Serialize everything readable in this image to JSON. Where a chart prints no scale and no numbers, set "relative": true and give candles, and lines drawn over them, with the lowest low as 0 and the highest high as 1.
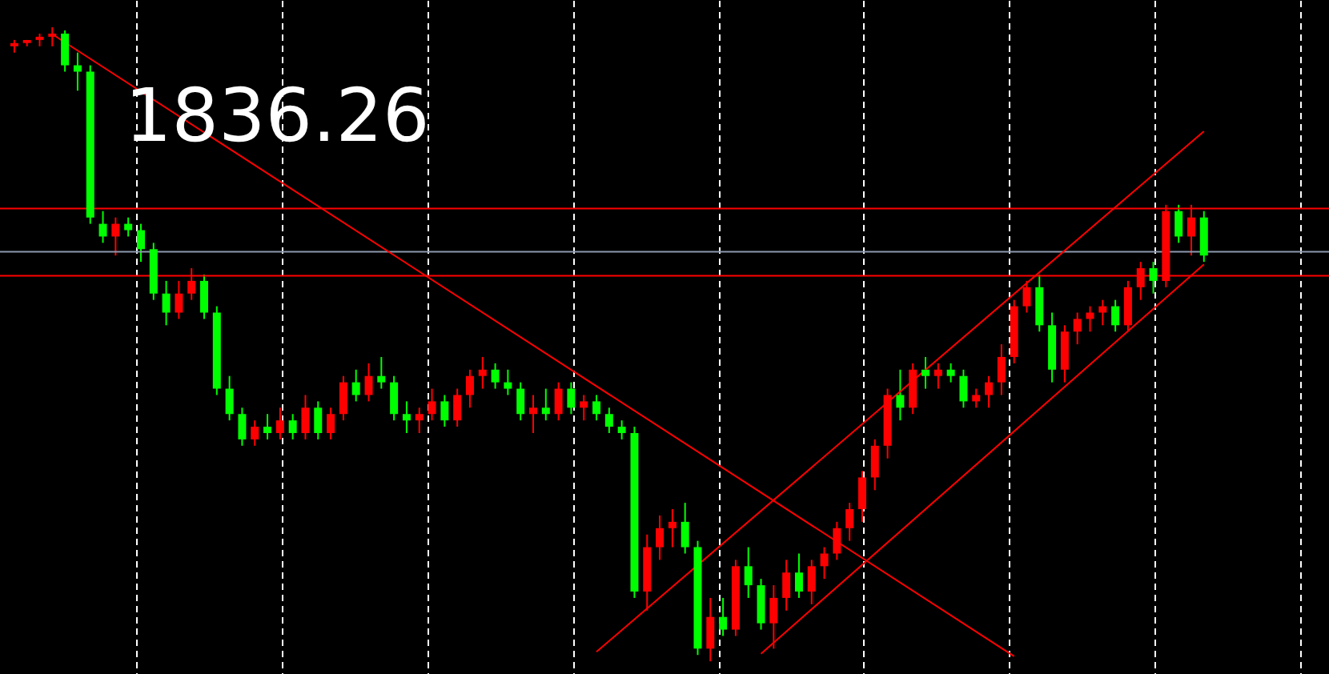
{
  "chart_data": {
    "type": "candlestick",
    "relative": true,
    "annotations": [
      "1836.26"
    ],
    "categories": [
      null,
      null,
      null,
      null,
      null,
      null,
      null,
      null,
      null,
      null,
      null,
      null,
      null,
      null,
      null,
      null,
      null,
      null,
      null,
      null,
      null,
      null,
      null,
      null,
      null,
      null,
      null,
      null,
      null,
      null,
      null,
      null,
      null,
      null,
      null,
      null,
      null,
      null,
      null,
      null,
      null,
      null,
      null,
      null,
      null,
      null,
      null,
      null,
      null,
      null,
      null,
      null,
      null,
      null,
      null,
      null,
      null,
      null,
      null,
      null,
      null,
      null,
      null,
      null,
      null,
      null,
      null,
      null,
      null,
      null,
      null,
      null,
      null,
      null,
      null,
      null,
      null,
      null,
      null,
      null,
      null,
      null,
      null,
      null,
      null,
      null,
      null,
      null,
      null,
      null,
      null,
      null,
      null,
      null,
      null
    ],
    "ohlc": [
      [
        0.97,
        0.98,
        0.96,
        0.975
      ],
      [
        0.975,
        0.98,
        0.97,
        0.98
      ],
      [
        0.98,
        0.99,
        0.97,
        0.985
      ],
      [
        0.985,
        1.0,
        0.97,
        0.99
      ],
      [
        0.99,
        0.995,
        0.93,
        0.94
      ],
      [
        0.94,
        0.96,
        0.9,
        0.93
      ],
      [
        0.93,
        0.94,
        0.69,
        0.7
      ],
      [
        0.69,
        0.71,
        0.66,
        0.67
      ],
      [
        0.67,
        0.7,
        0.64,
        0.69
      ],
      [
        0.69,
        0.7,
        0.67,
        0.68
      ],
      [
        0.68,
        0.69,
        0.63,
        0.65
      ],
      [
        0.65,
        0.66,
        0.57,
        0.58
      ],
      [
        0.58,
        0.6,
        0.53,
        0.55
      ],
      [
        0.55,
        0.6,
        0.54,
        0.58
      ],
      [
        0.58,
        0.62,
        0.57,
        0.6
      ],
      [
        0.6,
        0.61,
        0.54,
        0.55
      ],
      [
        0.55,
        0.56,
        0.42,
        0.43
      ],
      [
        0.43,
        0.45,
        0.38,
        0.39
      ],
      [
        0.39,
        0.4,
        0.34,
        0.35
      ],
      [
        0.35,
        0.38,
        0.34,
        0.37
      ],
      [
        0.37,
        0.39,
        0.35,
        0.36
      ],
      [
        0.36,
        0.4,
        0.35,
        0.38
      ],
      [
        0.38,
        0.39,
        0.35,
        0.36
      ],
      [
        0.36,
        0.42,
        0.35,
        0.4
      ],
      [
        0.4,
        0.41,
        0.35,
        0.36
      ],
      [
        0.36,
        0.4,
        0.35,
        0.39
      ],
      [
        0.39,
        0.45,
        0.38,
        0.44
      ],
      [
        0.44,
        0.46,
        0.41,
        0.42
      ],
      [
        0.42,
        0.47,
        0.41,
        0.45
      ],
      [
        0.45,
        0.48,
        0.43,
        0.44
      ],
      [
        0.44,
        0.45,
        0.38,
        0.39
      ],
      [
        0.39,
        0.41,
        0.36,
        0.38
      ],
      [
        0.38,
        0.4,
        0.36,
        0.39
      ],
      [
        0.39,
        0.43,
        0.38,
        0.41
      ],
      [
        0.41,
        0.42,
        0.37,
        0.38
      ],
      [
        0.38,
        0.43,
        0.37,
        0.42
      ],
      [
        0.42,
        0.46,
        0.4,
        0.45
      ],
      [
        0.45,
        0.48,
        0.43,
        0.46
      ],
      [
        0.46,
        0.47,
        0.43,
        0.44
      ],
      [
        0.44,
        0.46,
        0.42,
        0.43
      ],
      [
        0.43,
        0.44,
        0.38,
        0.39
      ],
      [
        0.39,
        0.42,
        0.36,
        0.4
      ],
      [
        0.4,
        0.43,
        0.38,
        0.39
      ],
      [
        0.39,
        0.44,
        0.38,
        0.43
      ],
      [
        0.43,
        0.44,
        0.39,
        0.4
      ],
      [
        0.4,
        0.42,
        0.38,
        0.41
      ],
      [
        0.41,
        0.42,
        0.38,
        0.39
      ],
      [
        0.39,
        0.4,
        0.36,
        0.37
      ],
      [
        0.37,
        0.38,
        0.35,
        0.36
      ],
      [
        0.36,
        0.37,
        0.1,
        0.11
      ],
      [
        0.11,
        0.2,
        0.08,
        0.18
      ],
      [
        0.18,
        0.23,
        0.16,
        0.21
      ],
      [
        0.21,
        0.24,
        0.18,
        0.22
      ],
      [
        0.22,
        0.25,
        0.17,
        0.18
      ],
      [
        0.18,
        0.19,
        0.01,
        0.02
      ],
      [
        0.02,
        0.1,
        0.0,
        0.07
      ],
      [
        0.07,
        0.1,
        0.04,
        0.05
      ],
      [
        0.05,
        0.16,
        0.04,
        0.15
      ],
      [
        0.15,
        0.18,
        0.1,
        0.12
      ],
      [
        0.12,
        0.13,
        0.05,
        0.06
      ],
      [
        0.06,
        0.12,
        0.02,
        0.1
      ],
      [
        0.1,
        0.16,
        0.08,
        0.14
      ],
      [
        0.14,
        0.17,
        0.1,
        0.11
      ],
      [
        0.11,
        0.16,
        0.09,
        0.15
      ],
      [
        0.15,
        0.18,
        0.13,
        0.17
      ],
      [
        0.17,
        0.22,
        0.16,
        0.21
      ],
      [
        0.21,
        0.25,
        0.19,
        0.24
      ],
      [
        0.24,
        0.3,
        0.22,
        0.29
      ],
      [
        0.29,
        0.35,
        0.27,
        0.34
      ],
      [
        0.34,
        0.43,
        0.32,
        0.42
      ],
      [
        0.42,
        0.46,
        0.38,
        0.4
      ],
      [
        0.4,
        0.47,
        0.39,
        0.46
      ],
      [
        0.46,
        0.48,
        0.43,
        0.45
      ],
      [
        0.45,
        0.47,
        0.43,
        0.46
      ],
      [
        0.46,
        0.47,
        0.44,
        0.45
      ],
      [
        0.45,
        0.46,
        0.4,
        0.41
      ],
      [
        0.41,
        0.43,
        0.4,
        0.42
      ],
      [
        0.42,
        0.45,
        0.4,
        0.44
      ],
      [
        0.44,
        0.5,
        0.42,
        0.48
      ],
      [
        0.48,
        0.57,
        0.47,
        0.56
      ],
      [
        0.56,
        0.6,
        0.55,
        0.59
      ],
      [
        0.59,
        0.61,
        0.52,
        0.53
      ],
      [
        0.53,
        0.55,
        0.44,
        0.46
      ],
      [
        0.46,
        0.53,
        0.44,
        0.52
      ],
      [
        0.52,
        0.55,
        0.5,
        0.54
      ],
      [
        0.54,
        0.56,
        0.52,
        0.55
      ],
      [
        0.55,
        0.57,
        0.53,
        0.56
      ],
      [
        0.56,
        0.57,
        0.52,
        0.53
      ],
      [
        0.53,
        0.6,
        0.52,
        0.59
      ],
      [
        0.59,
        0.63,
        0.57,
        0.62
      ],
      [
        0.62,
        0.63,
        0.58,
        0.6
      ],
      [
        0.6,
        0.72,
        0.59,
        0.71
      ],
      [
        0.71,
        0.72,
        0.66,
        0.67
      ],
      [
        0.67,
        0.72,
        0.64,
        0.7
      ],
      [
        0.7,
        0.71,
        0.63,
        0.64
      ]
    ],
    "colors": [
      "#ff0000",
      "#ff0000",
      "#ff0000",
      "#ff0000",
      "#00ff00",
      "#00ff00",
      "#00ff00",
      "#00ff00",
      "#ff0000",
      "#00ff00",
      "#00ff00",
      "#00ff00",
      "#00ff00",
      "#ff0000",
      "#ff0000",
      "#00ff00",
      "#00ff00",
      "#00ff00",
      "#00ff00",
      "#ff0000",
      "#00ff00",
      "#ff0000",
      "#00ff00",
      "#ff0000",
      "#00ff00",
      "#ff0000",
      "#ff0000",
      "#00ff00",
      "#ff0000",
      "#00ff00",
      "#00ff00",
      "#00ff00",
      "#ff0000",
      "#ff0000",
      "#00ff00",
      "#ff0000",
      "#ff0000",
      "#ff0000",
      "#00ff00",
      "#00ff00",
      "#00ff00",
      "#ff0000",
      "#00ff00",
      "#ff0000",
      "#00ff00",
      "#ff0000",
      "#00ff00",
      "#00ff00",
      "#00ff00",
      "#00ff00",
      "#ff0000",
      "#ff0000",
      "#ff0000",
      "#00ff00",
      "#00ff00",
      "#ff0000",
      "#00ff00",
      "#ff0000",
      "#00ff00",
      "#00ff00",
      "#ff0000",
      "#ff0000",
      "#00ff00",
      "#ff0000",
      "#ff0000",
      "#ff0000",
      "#ff0000",
      "#ff0000",
      "#ff0000",
      "#ff0000",
      "#00ff00",
      "#ff0000",
      "#00ff00",
      "#ff0000",
      "#00ff00",
      "#00ff00",
      "#ff0000",
      "#ff0000",
      "#ff0000",
      "#ff0000",
      "#ff0000",
      "#00ff00",
      "#00ff00",
      "#ff0000",
      "#ff0000",
      "#ff0000",
      "#ff0000",
      "#00ff00",
      "#ff0000",
      "#ff0000",
      "#00ff00",
      "#ff0000",
      "#00ff00",
      "#ff0000",
      "#00ff00"
    ],
    "series": [
      {
        "type": "line",
        "color": "#ff0000",
        "values": [
          null,
          null,
          null,
          0.989,
          null,
          null,
          null,
          null,
          null,
          null,
          null,
          null,
          null,
          null,
          null,
          null,
          null,
          null,
          null,
          null,
          null,
          null,
          null,
          null,
          null,
          null,
          null,
          null,
          null,
          null,
          null,
          null,
          null,
          null,
          null,
          null,
          null,
          null,
          null,
          null,
          null,
          null,
          null,
          null,
          null,
          null,
          null,
          null,
          null,
          null,
          null,
          null,
          null,
          null,
          null,
          null,
          null,
          null,
          null,
          null,
          null,
          null,
          null,
          null,
          null,
          null,
          null,
          null,
          null,
          null,
          null,
          null,
          null,
          null,
          null,
          null,
          null,
          null,
          null,
          0.008,
          null,
          null,
          null,
          null,
          null,
          null,
          null,
          null,
          null,
          null,
          null,
          null,
          null,
          null,
          null
        ]
      },
      {
        "type": "line",
        "color": "#ff0000",
        "values": [
          null,
          null,
          null,
          null,
          null,
          null,
          null,
          null,
          null,
          null,
          null,
          null,
          null,
          null,
          null,
          null,
          null,
          null,
          null,
          null,
          null,
          null,
          null,
          null,
          null,
          null,
          null,
          null,
          null,
          null,
          null,
          null,
          null,
          null,
          null,
          null,
          null,
          null,
          null,
          null,
          null,
          null,
          null,
          null,
          null,
          null,
          0.015,
          null,
          null,
          null,
          null,
          null,
          null,
          null,
          null,
          null,
          null,
          null,
          null,
          null,
          null,
          null,
          null,
          null,
          null,
          null,
          null,
          null,
          null,
          null,
          null,
          null,
          null,
          null,
          null,
          null,
          null,
          null,
          null,
          null,
          null,
          null,
          null,
          null,
          null,
          null,
          null,
          null,
          null,
          null,
          null,
          null,
          null,
          null,
          0.836
        ]
      },
      {
        "type": "line",
        "color": "#ff0000",
        "values": [
          null,
          null,
          null,
          null,
          null,
          null,
          null,
          null,
          null,
          null,
          null,
          null,
          null,
          null,
          null,
          null,
          null,
          null,
          null,
          null,
          null,
          null,
          null,
          null,
          null,
          null,
          null,
          null,
          null,
          null,
          null,
          null,
          null,
          null,
          null,
          null,
          null,
          null,
          null,
          null,
          null,
          null,
          null,
          null,
          null,
          null,
          null,
          null,
          null,
          null,
          null,
          null,
          null,
          null,
          null,
          null,
          null,
          null,
          null,
          0.012,
          null,
          null,
          null,
          null,
          null,
          null,
          null,
          null,
          null,
          null,
          null,
          null,
          null,
          null,
          null,
          null,
          null,
          null,
          null,
          null,
          null,
          null,
          null,
          null,
          null,
          null,
          null,
          null,
          null,
          null,
          null,
          null,
          null,
          null,
          0.626
        ]
      }
    ],
    "ref_lines": [
      {
        "axis": "y",
        "value": 0.714,
        "label": null,
        "color": "#ff0000"
      },
      {
        "axis": "y",
        "value": 0.646,
        "label": null,
        "color": "#8c9aae"
      },
      {
        "axis": "y",
        "value": 0.608,
        "label": null,
        "color": "#ff0000"
      }
    ],
    "grid": "x"
  }
}
